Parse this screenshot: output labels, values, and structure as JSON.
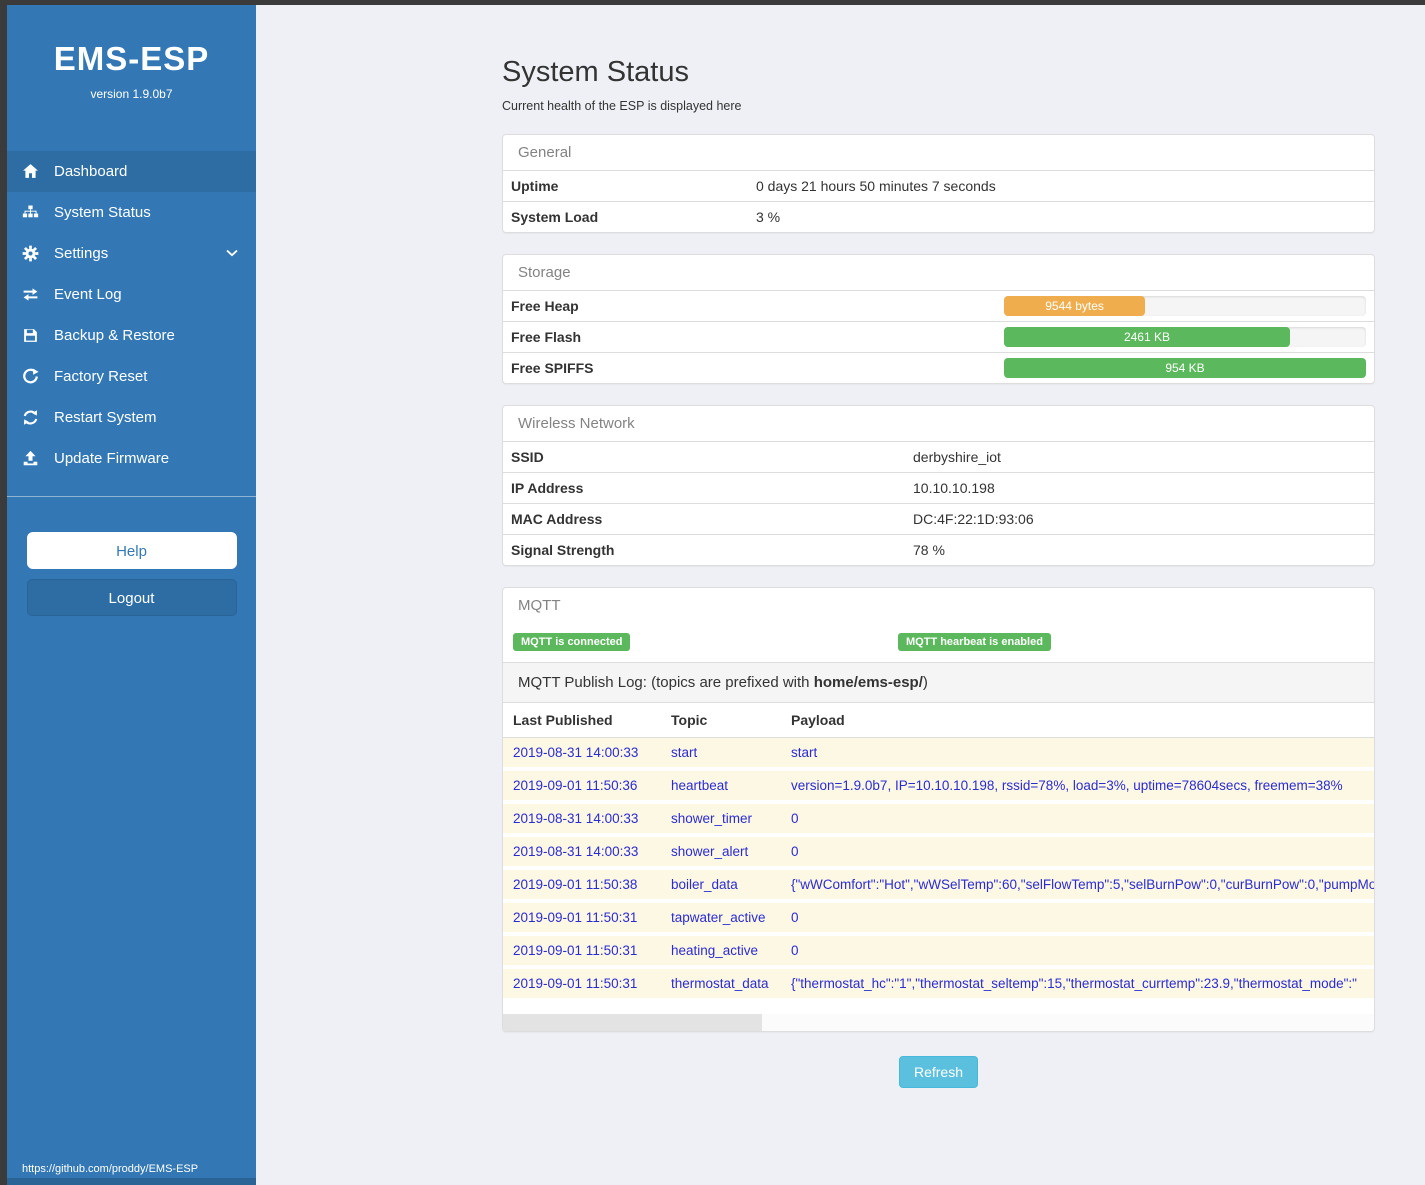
{
  "colors": {
    "sidebar_blue": "#3378b5",
    "sidebar_active": "#2d6da4",
    "frame_dark": "#3b3b3b",
    "accent_green": "#5cb85c",
    "accent_orange": "#f0ad4e",
    "refresh_blue": "#5bc0de",
    "log_text_blue": "#2b2bd5",
    "log_row_yellow": "#fcf8e3"
  },
  "sidebar": {
    "title": "EMS-ESP",
    "version": "version 1.9.0b7",
    "items": [
      {
        "icon": "home-icon",
        "label": "Dashboard",
        "active": true
      },
      {
        "icon": "sitemap-icon",
        "label": "System Status",
        "active": false
      },
      {
        "icon": "gear-icon",
        "label": "Settings",
        "active": false,
        "chevron": "chevron-down-icon"
      },
      {
        "icon": "exchange-arrows-icon",
        "label": "Event Log",
        "active": false
      },
      {
        "icon": "floppy-disk-icon",
        "label": "Backup & Restore",
        "active": false
      },
      {
        "icon": "rotate-icon",
        "label": "Factory Reset",
        "active": false
      },
      {
        "icon": "refresh-icon",
        "label": "Restart System",
        "active": false
      },
      {
        "icon": "upload-icon",
        "label": "Update Firmware",
        "active": false
      }
    ],
    "help_label": "Help",
    "logout_label": "Logout",
    "footer_url": "https://github.com/proddy/EMS-ESP"
  },
  "page": {
    "title": "System Status",
    "subtitle": "Current health of the ESP is displayed here"
  },
  "general": {
    "heading": "General",
    "rows": [
      {
        "label": "Uptime",
        "value": "0 days 21 hours 50 minutes 7 seconds"
      },
      {
        "label": "System Load",
        "value": "3 %"
      }
    ]
  },
  "storage": {
    "heading": "Storage",
    "rows": [
      {
        "label": "Free Heap",
        "bar_label": "9544 bytes",
        "fill_pct": 39,
        "bar_color": "#f0ad4e"
      },
      {
        "label": "Free Flash",
        "bar_label": "2461 KB",
        "fill_pct": 79,
        "bar_color": "#5cb85c"
      },
      {
        "label": "Free SPIFFS",
        "bar_label": "954 KB",
        "fill_pct": 100,
        "bar_color": "#5cb85c"
      }
    ]
  },
  "wireless": {
    "heading": "Wireless Network",
    "rows": [
      {
        "label": "SSID",
        "value": "derbyshire_iot"
      },
      {
        "label": "IP Address",
        "value": "10.10.10.198"
      },
      {
        "label": "MAC Address",
        "value": "DC:4F:22:1D:93:06"
      },
      {
        "label": "Signal Strength",
        "value": "78 %"
      }
    ]
  },
  "mqtt": {
    "heading": "MQTT",
    "badges": [
      "MQTT is connected",
      "MQTT hearbeat is enabled"
    ],
    "publish_log": {
      "prefix_text": "MQTT Publish Log: (topics are prefixed with ",
      "topic_prefix": "home/ems-esp/",
      "suffix_text": ")"
    },
    "table": {
      "headers": [
        "Last Published",
        "Topic",
        "Payload"
      ],
      "rows": [
        {
          "published": "2019-08-31 14:00:33",
          "topic": "start",
          "payload": "start"
        },
        {
          "published": "2019-09-01 11:50:36",
          "topic": "heartbeat",
          "payload": "version=1.9.0b7, IP=10.10.10.198, rssid=78%, load=3%, uptime=78604secs, freemem=38%"
        },
        {
          "published": "2019-08-31 14:00:33",
          "topic": "shower_timer",
          "payload": "0"
        },
        {
          "published": "2019-08-31 14:00:33",
          "topic": "shower_alert",
          "payload": "0"
        },
        {
          "published": "2019-09-01 11:50:38",
          "topic": "boiler_data",
          "payload": "{\"wWComfort\":\"Hot\",\"wWSelTemp\":60,\"selFlowTemp\":5,\"selBurnPow\":0,\"curBurnPow\":0,\"pumpMod\":"
        },
        {
          "published": "2019-09-01 11:50:31",
          "topic": "tapwater_active",
          "payload": "0"
        },
        {
          "published": "2019-09-01 11:50:31",
          "topic": "heating_active",
          "payload": "0"
        },
        {
          "published": "2019-09-01 11:50:31",
          "topic": "thermostat_data",
          "payload": "{\"thermostat_hc\":\"1\",\"thermostat_seltemp\":15,\"thermostat_currtemp\":23.9,\"thermostat_mode\":\""
        }
      ]
    }
  },
  "refresh_label": "Refresh"
}
